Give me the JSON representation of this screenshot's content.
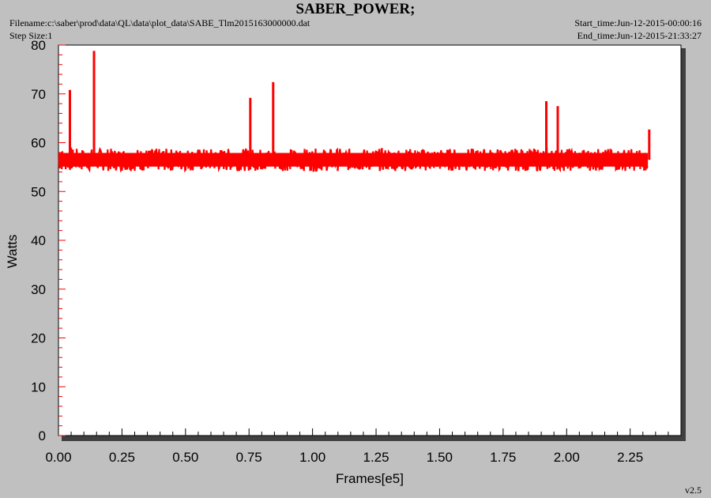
{
  "header": {
    "title": "SABER_POWER;",
    "filename": "Filename:c:\\saber\\prod\\data\\QL\\data\\plot_data\\SABE_Tlm2015163000000.dat",
    "step_size": "Step Size:1",
    "start_time": "Start_time:Jun-12-2015-00:00:16",
    "end_time": "End_time:Jun-12-2015-21:33:27"
  },
  "footer": {
    "version": "v2.5"
  },
  "colors": {
    "series": "#ff0000",
    "plot_bg": "#ffffff",
    "page_bg": "#c0c0c0",
    "shadow": "#404040",
    "tick": "#ff0000"
  },
  "chart_data": {
    "type": "line",
    "xlabel": "Frames[e5]",
    "ylabel": "Watts",
    "xlim": [
      0.0,
      2.45
    ],
    "ylim": [
      0,
      80
    ],
    "x_ticks": [
      "0.00",
      "0.25",
      "0.50",
      "0.75",
      "1.00",
      "1.25",
      "1.50",
      "1.75",
      "2.00",
      "2.25"
    ],
    "y_ticks": [
      "0",
      "10",
      "20",
      "30",
      "40",
      "50",
      "60",
      "70",
      "80"
    ],
    "grid": false,
    "series": [
      {
        "band": {
          "x_start": 0.0,
          "x_end": 2.32,
          "low": 54.5,
          "high": 58.5,
          "mean": 56.5
        },
        "spikes": [
          {
            "x": 0.045,
            "y": 70.8
          },
          {
            "x": 0.14,
            "y": 78.8
          },
          {
            "x": 0.755,
            "y": 69.2
          },
          {
            "x": 0.845,
            "y": 72.4
          },
          {
            "x": 1.92,
            "y": 68.5
          },
          {
            "x": 1.965,
            "y": 67.5
          },
          {
            "x": 2.325,
            "y": 62.7
          }
        ]
      }
    ]
  }
}
